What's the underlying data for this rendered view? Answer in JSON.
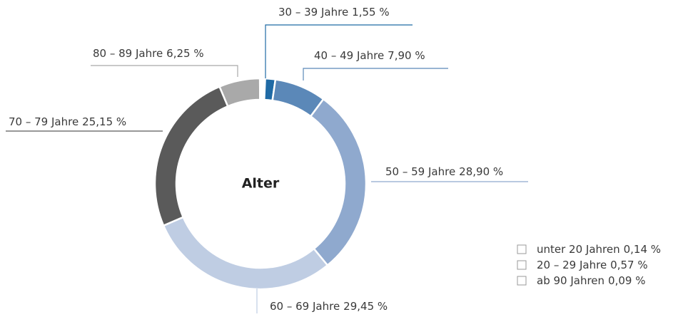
{
  "chart_data": {
    "type": "donut",
    "title": "Alter",
    "categories": [
      "unter 20 Jahren",
      "20 – 29 Jahre",
      "30 – 39 Jahre",
      "40 – 49 Jahre",
      "50 – 59 Jahre",
      "60 – 69 Jahre",
      "70 – 79 Jahre",
      "80 – 89 Jahre",
      "ab 90 Jahren"
    ],
    "values": [
      0.14,
      0.57,
      1.55,
      7.9,
      28.9,
      29.45,
      25.15,
      6.25,
      0.09
    ],
    "value_labels": [
      "0,14 %",
      "0,57 %",
      "1,55 %",
      "7,90 %",
      "28,90 %",
      "29,45 %",
      "25,15 %",
      "6,25 %",
      "0,09 %"
    ],
    "colors": [
      "#ffffff",
      "#ffffff",
      "#1f6aa5",
      "#5b88b8",
      "#8fa9ce",
      "#bfcde3",
      "#5a5a5a",
      "#a9a9a9",
      "#ffffff"
    ]
  }
}
